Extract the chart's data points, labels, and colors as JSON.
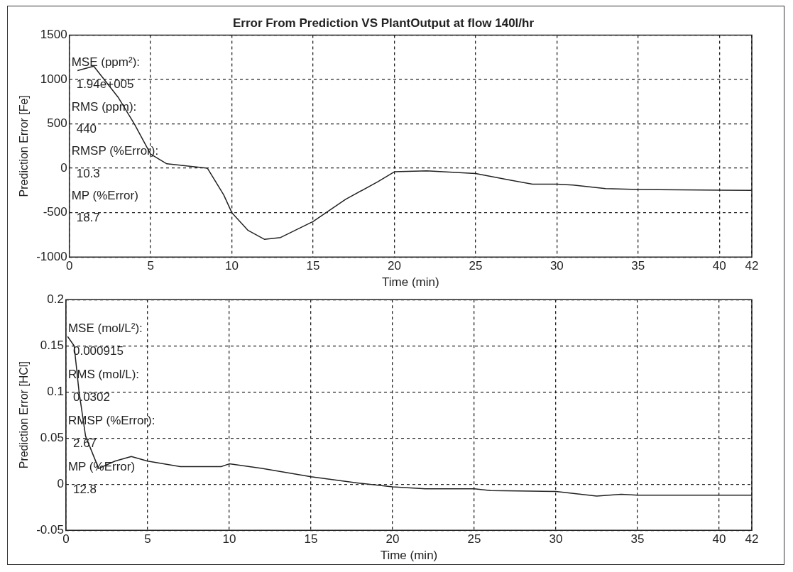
{
  "chart_data": [
    {
      "type": "line",
      "title": "Error From Prediction VS PlantOutput at flow 140l/hr",
      "xlabel": "Time (min)",
      "ylabel": "Prediction Error [Fe]",
      "xlim": [
        0,
        42
      ],
      "xticks": [
        0,
        5,
        10,
        15,
        20,
        25,
        30,
        35,
        40,
        42
      ],
      "ylim": [
        -1000,
        1500
      ],
      "yticks": [
        -1000,
        -500,
        0,
        500,
        1000,
        1500
      ],
      "grid": true,
      "annotations": [
        "MSE (ppm²):",
        "1.94e+005",
        "RMS (ppm):",
        "440",
        "RMSP (%Error):",
        "10.3",
        "MP (%Error)",
        "18.7"
      ],
      "series": [
        {
          "color": "#222222",
          "x": [
            0.5,
            1.5,
            3,
            4,
            5,
            6,
            7,
            8.5,
            9.5,
            10,
            11,
            12,
            13,
            15,
            17,
            19,
            20,
            22,
            23,
            25,
            27,
            28.5,
            30,
            31,
            33,
            35,
            42
          ],
          "values": [
            1100,
            1150,
            800,
            500,
            160,
            50,
            30,
            0,
            -300,
            -500,
            -700,
            -800,
            -780,
            -600,
            -350,
            -150,
            -40,
            -30,
            -40,
            -60,
            -130,
            -180,
            -180,
            -190,
            -230,
            -240,
            -250
          ]
        }
      ]
    },
    {
      "type": "line",
      "xlabel": "Time (min)",
      "ylabel": "Prediction Error [HCl]",
      "xlim": [
        0,
        42
      ],
      "xticks": [
        0,
        5,
        10,
        15,
        20,
        25,
        30,
        35,
        40,
        42
      ],
      "ylim": [
        -0.05,
        0.2
      ],
      "yticks": [
        -0.05,
        0,
        0.05,
        0.1,
        0.15,
        0.2
      ],
      "grid": true,
      "annotations": [
        "MSE (mol/L²):",
        "0.000915",
        "RMS (mol/L):",
        "0.0302",
        "RMSP (%Error):",
        "2.67",
        "MP (%Error)",
        "12.8"
      ],
      "series": [
        {
          "color": "#222222",
          "x": [
            0.1,
            0.5,
            0.8,
            1.2,
            2,
            3,
            4,
            5,
            7,
            9.5,
            10,
            12,
            15,
            18,
            20,
            22,
            25,
            26,
            30,
            32.5,
            34,
            35,
            42
          ],
          "values": [
            0.16,
            0.15,
            0.1,
            0.052,
            0.017,
            0.025,
            0.03,
            0.025,
            0.019,
            0.019,
            0.022,
            0.017,
            0.008,
            0.001,
            -0.003,
            -0.005,
            -0.005,
            -0.007,
            -0.008,
            -0.013,
            -0.011,
            -0.012,
            -0.012
          ]
        }
      ]
    }
  ]
}
